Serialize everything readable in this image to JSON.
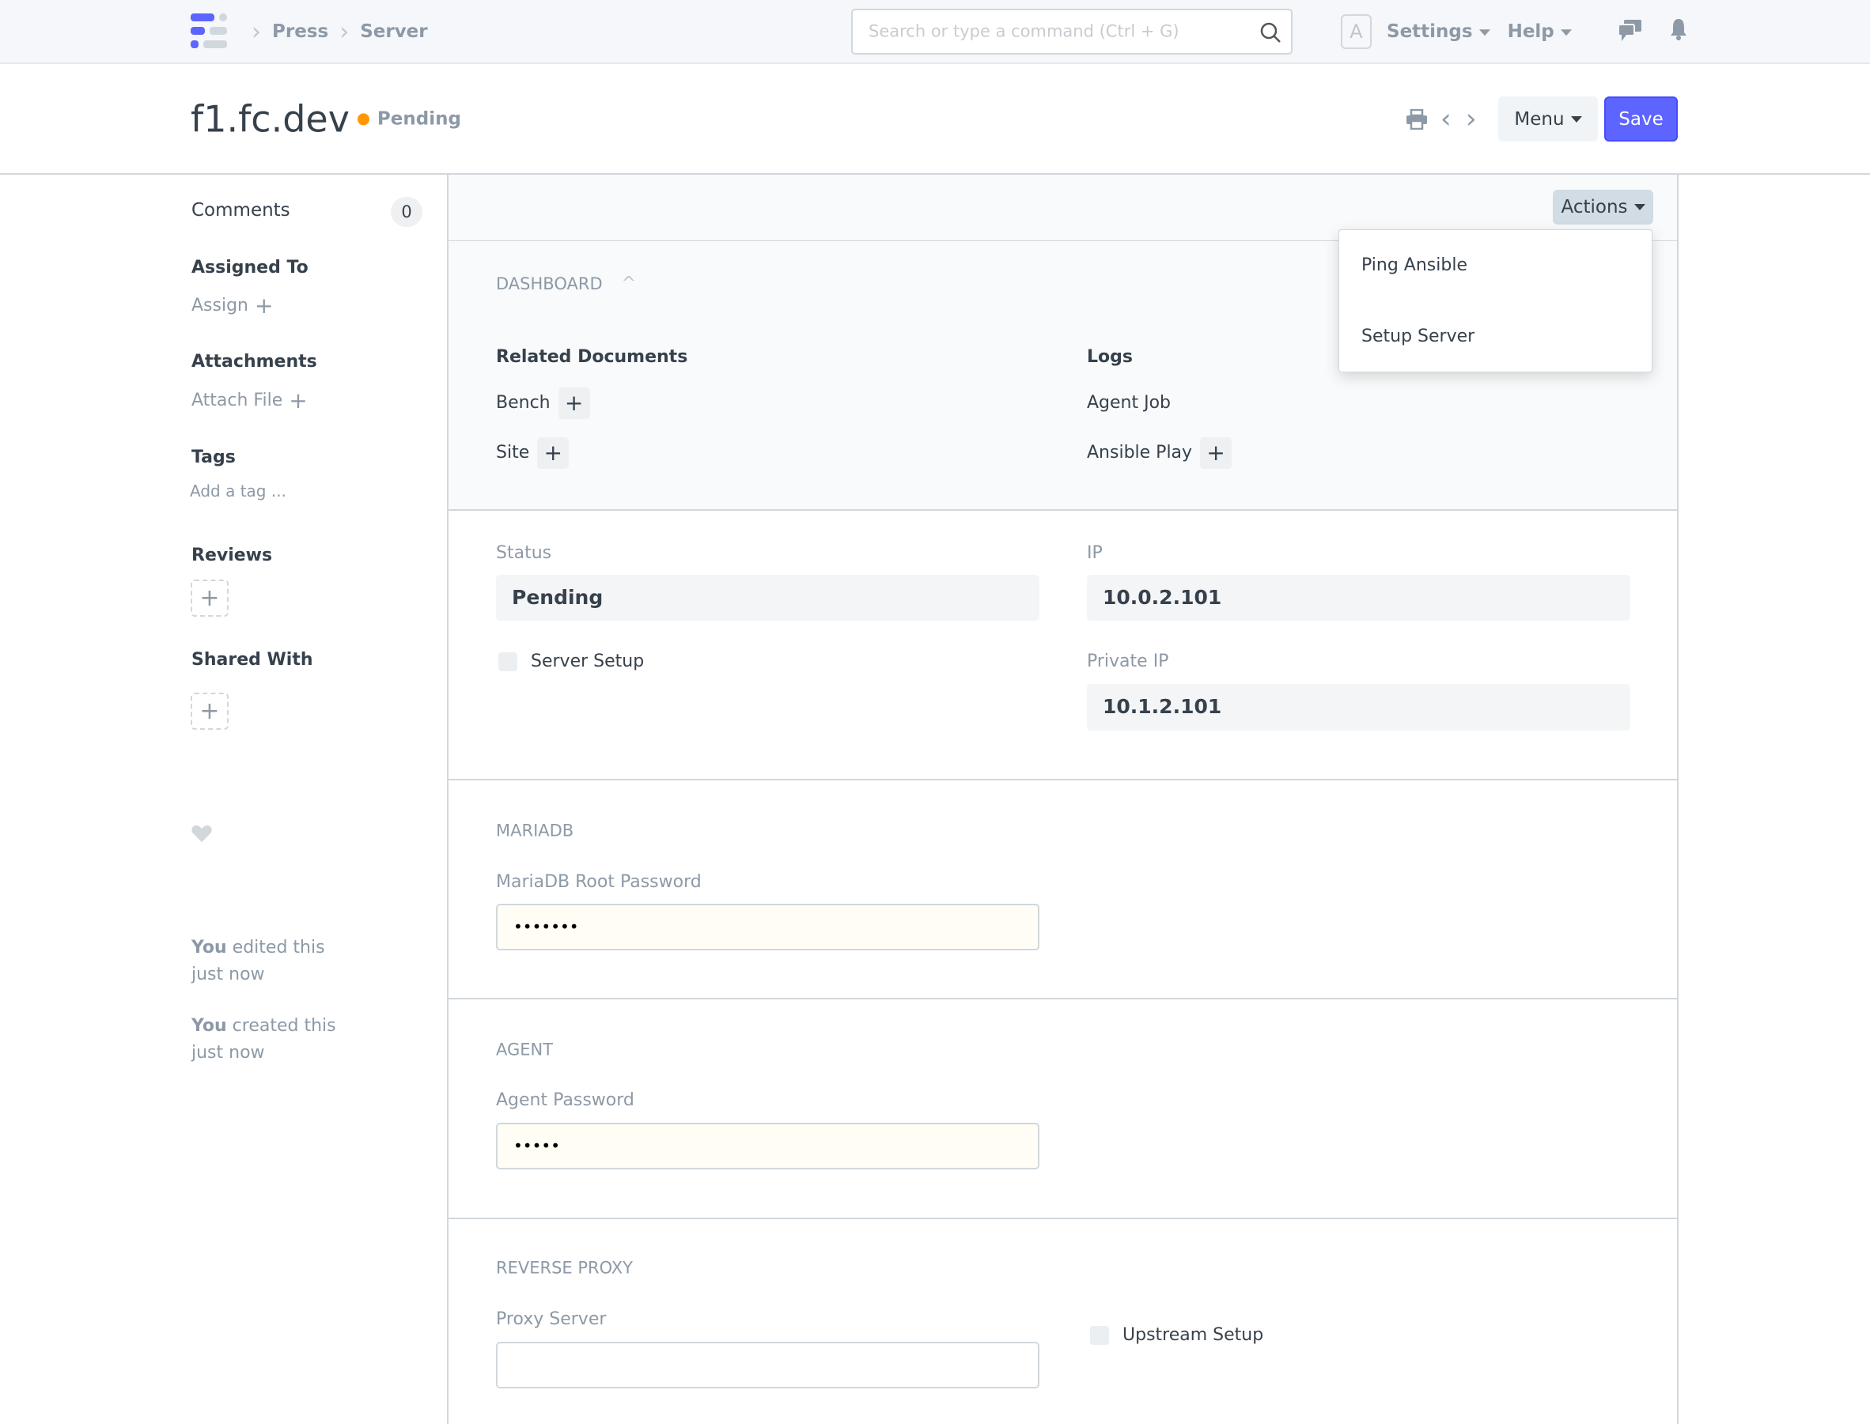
{
  "navbar": {
    "breadcrumbs": [
      "Press",
      "Server"
    ],
    "search_placeholder": "Search or type a command (Ctrl + G)",
    "avatar_letter": "A",
    "settings_label": "Settings",
    "help_label": "Help"
  },
  "header": {
    "title": "f1.fc.dev",
    "status": "Pending",
    "status_color": "#ff9800",
    "menu_label": "Menu",
    "save_label": "Save",
    "accent": "#5e64ff"
  },
  "sidebar": {
    "comments_label": "Comments",
    "comments_count": "0",
    "assigned_to": "Assigned To",
    "assign": "Assign",
    "attachments": "Attachments",
    "attach_file": "Attach File",
    "tags": "Tags",
    "add_tag": "Add a tag ...",
    "reviews": "Reviews",
    "shared_with": "Shared With",
    "activity": [
      {
        "who": "You",
        "what": " edited this",
        "when": "just now"
      },
      {
        "who": "You",
        "what": " created this",
        "when": "just now"
      }
    ]
  },
  "actions": {
    "label": "Actions",
    "items": [
      "Ping Ansible",
      "Setup Server"
    ]
  },
  "dashboard": {
    "title": "DASHBOARD",
    "related_title": "Related Documents",
    "related": [
      "Bench",
      "Site"
    ],
    "logs_title": "Logs",
    "logs": [
      "Agent Job",
      "Ansible Play"
    ]
  },
  "details": {
    "status_label": "Status",
    "status_value": "Pending",
    "ip_label": "IP",
    "ip_value": "10.0.2.101",
    "server_setup_label": "Server Setup",
    "private_ip_label": "Private IP",
    "private_ip_value": "10.1.2.101"
  },
  "mariadb": {
    "title": "MARIADB",
    "label": "MariaDB Root Password",
    "value": "•••••••"
  },
  "agent": {
    "title": "AGENT",
    "label": "Agent Password",
    "value": "•••••"
  },
  "reverse_proxy": {
    "title": "REVERSE PROXY",
    "proxy_label": "Proxy Server",
    "proxy_value": "",
    "upstream_label": "Upstream Setup"
  }
}
